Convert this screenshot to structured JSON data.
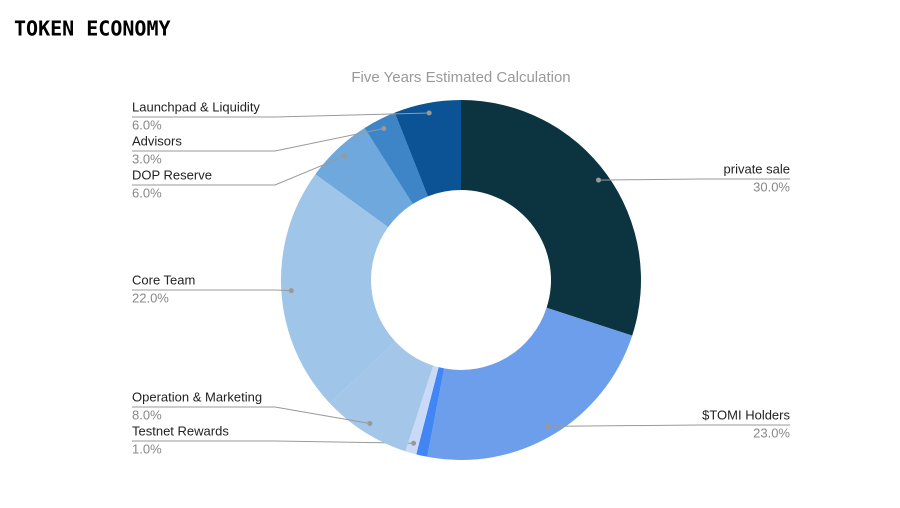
{
  "header": {
    "title": "TOKEN ECONOMY"
  },
  "chart_data": {
    "type": "donut",
    "title": "Five Years Estimated Calculation",
    "categories": [
      "private sale",
      "$TOMI Holders",
      null,
      "Testnet Rewards",
      "Operation & Marketing",
      "Core Team",
      "DOP Reserve",
      "Advisors",
      "Launchpad & Liquidity"
    ],
    "values": [
      30,
      23,
      1,
      1,
      8,
      22,
      6,
      3,
      6
    ],
    "value_labels": [
      "30.0%",
      "23.0%",
      null,
      "1.0%",
      "8.0%",
      "22.0%",
      "6.0%",
      "3.0%",
      "6.0%"
    ],
    "colors": [
      "#0c3440",
      "#6d9eeb",
      "#4285f4",
      "#c9daf8",
      "#a4c6e8",
      "#9fc5e8",
      "#6fa8dc",
      "#3d85c6",
      "#0b5394"
    ]
  }
}
